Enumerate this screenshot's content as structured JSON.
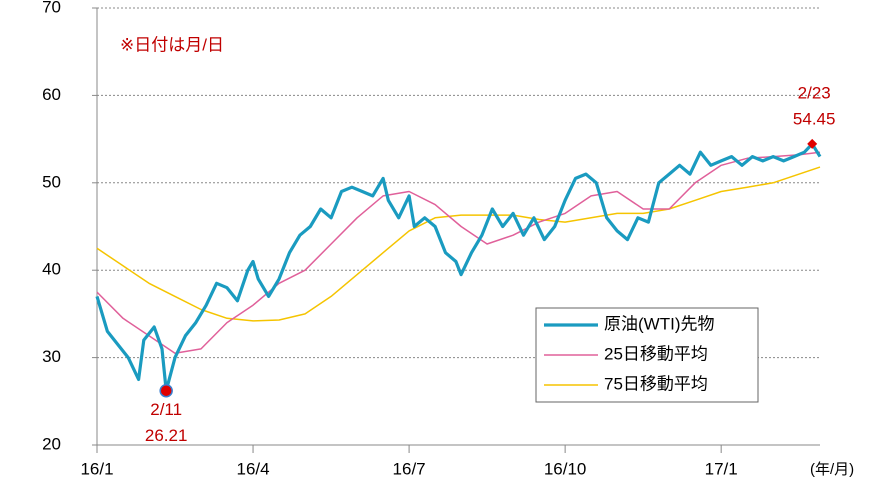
{
  "chart_data": {
    "type": "line",
    "note": "※日付は月/日",
    "x_unit": "(年/月)",
    "xlim": [
      0,
      13.9
    ],
    "xticks": [
      {
        "value": 0,
        "label": "16/1"
      },
      {
        "value": 3,
        "label": "16/4"
      },
      {
        "value": 6,
        "label": "16/7"
      },
      {
        "value": 9,
        "label": "16/10"
      },
      {
        "value": 12,
        "label": "17/1"
      }
    ],
    "ylim": [
      20,
      70
    ],
    "yticks": [
      20,
      30,
      40,
      50,
      60,
      70
    ],
    "grid": true,
    "legend": "lower right",
    "series": [
      {
        "name": "原油(WTI)先物",
        "color": "#1a9bc0",
        "width": 3.2,
        "x": [
          0,
          0.2,
          0.4,
          0.6,
          0.8,
          0.9,
          1.1,
          1.25,
          1.33,
          1.5,
          1.7,
          1.9,
          2.1,
          2.3,
          2.5,
          2.7,
          2.9,
          3.0,
          3.1,
          3.3,
          3.5,
          3.7,
          3.9,
          4.1,
          4.3,
          4.5,
          4.7,
          4.9,
          5.1,
          5.3,
          5.5,
          5.6,
          5.8,
          6.0,
          6.1,
          6.3,
          6.5,
          6.7,
          6.9,
          7.0,
          7.2,
          7.4,
          7.6,
          7.8,
          8.0,
          8.2,
          8.4,
          8.6,
          8.8,
          9.0,
          9.2,
          9.4,
          9.6,
          9.8,
          10.0,
          10.2,
          10.4,
          10.6,
          10.8,
          11.0,
          11.2,
          11.4,
          11.6,
          11.8,
          12.0,
          12.2,
          12.4,
          12.6,
          12.8,
          13.0,
          13.2,
          13.4,
          13.6,
          13.75,
          13.9
        ],
        "values": [
          37,
          33,
          31.5,
          30,
          27.5,
          32,
          33.5,
          31,
          26.21,
          30,
          32.5,
          34,
          36,
          38.5,
          38,
          36.5,
          40,
          41,
          39,
          37,
          39,
          42,
          44,
          45,
          47,
          46,
          49,
          49.5,
          49,
          48.5,
          50.5,
          48,
          46,
          48.5,
          45,
          46,
          45,
          42,
          41,
          39.5,
          42,
          44,
          47,
          45,
          46.5,
          44,
          46,
          43.5,
          45,
          48,
          50.5,
          51,
          50,
          46,
          44.5,
          43.5,
          46,
          45.5,
          50,
          51,
          52,
          51,
          53.5,
          52,
          52.5,
          53,
          52,
          53,
          52.5,
          53,
          52.5,
          53,
          53.5,
          54.45,
          53
        ]
      },
      {
        "name": "25日移動平均",
        "color": "#e0609a",
        "width": 1.5,
        "x": [
          0,
          0.5,
          1,
          1.5,
          2,
          2.5,
          3,
          3.5,
          4,
          4.5,
          5,
          5.5,
          6,
          6.5,
          7,
          7.5,
          8,
          8.5,
          9,
          9.5,
          10,
          10.5,
          11,
          11.5,
          12,
          12.5,
          13,
          13.5,
          13.9
        ],
        "values": [
          37.5,
          34.5,
          32.5,
          30.5,
          31,
          34,
          36,
          38.5,
          40,
          43,
          46,
          48.5,
          49,
          47.5,
          45,
          43,
          44,
          45.5,
          46.5,
          48.5,
          49,
          47,
          47,
          50,
          52,
          52.8,
          53,
          53.2,
          53.5
        ]
      },
      {
        "name": "75日移動平均",
        "color": "#f5c400",
        "width": 1.5,
        "x": [
          0,
          0.5,
          1,
          1.5,
          2,
          2.5,
          3,
          3.5,
          4,
          4.5,
          5,
          5.5,
          6,
          6.5,
          7,
          7.5,
          8,
          8.5,
          9,
          9.5,
          10,
          10.5,
          11,
          11.5,
          12,
          12.5,
          13,
          13.5,
          13.9
        ],
        "values": [
          42.5,
          40.5,
          38.5,
          37,
          35.5,
          34.5,
          34.2,
          34.3,
          35,
          37,
          39.5,
          42,
          44.5,
          46,
          46.3,
          46.3,
          46.3,
          45.8,
          45.5,
          46,
          46.5,
          46.5,
          47,
          48,
          49,
          49.5,
          50,
          51,
          51.8
        ]
      }
    ],
    "markers": [
      {
        "date": "2/11",
        "x": 1.33,
        "value": 26.21,
        "shape": "circle"
      },
      {
        "date": "2/23",
        "x": 13.75,
        "value": 54.45,
        "shape": "diamond"
      }
    ]
  }
}
